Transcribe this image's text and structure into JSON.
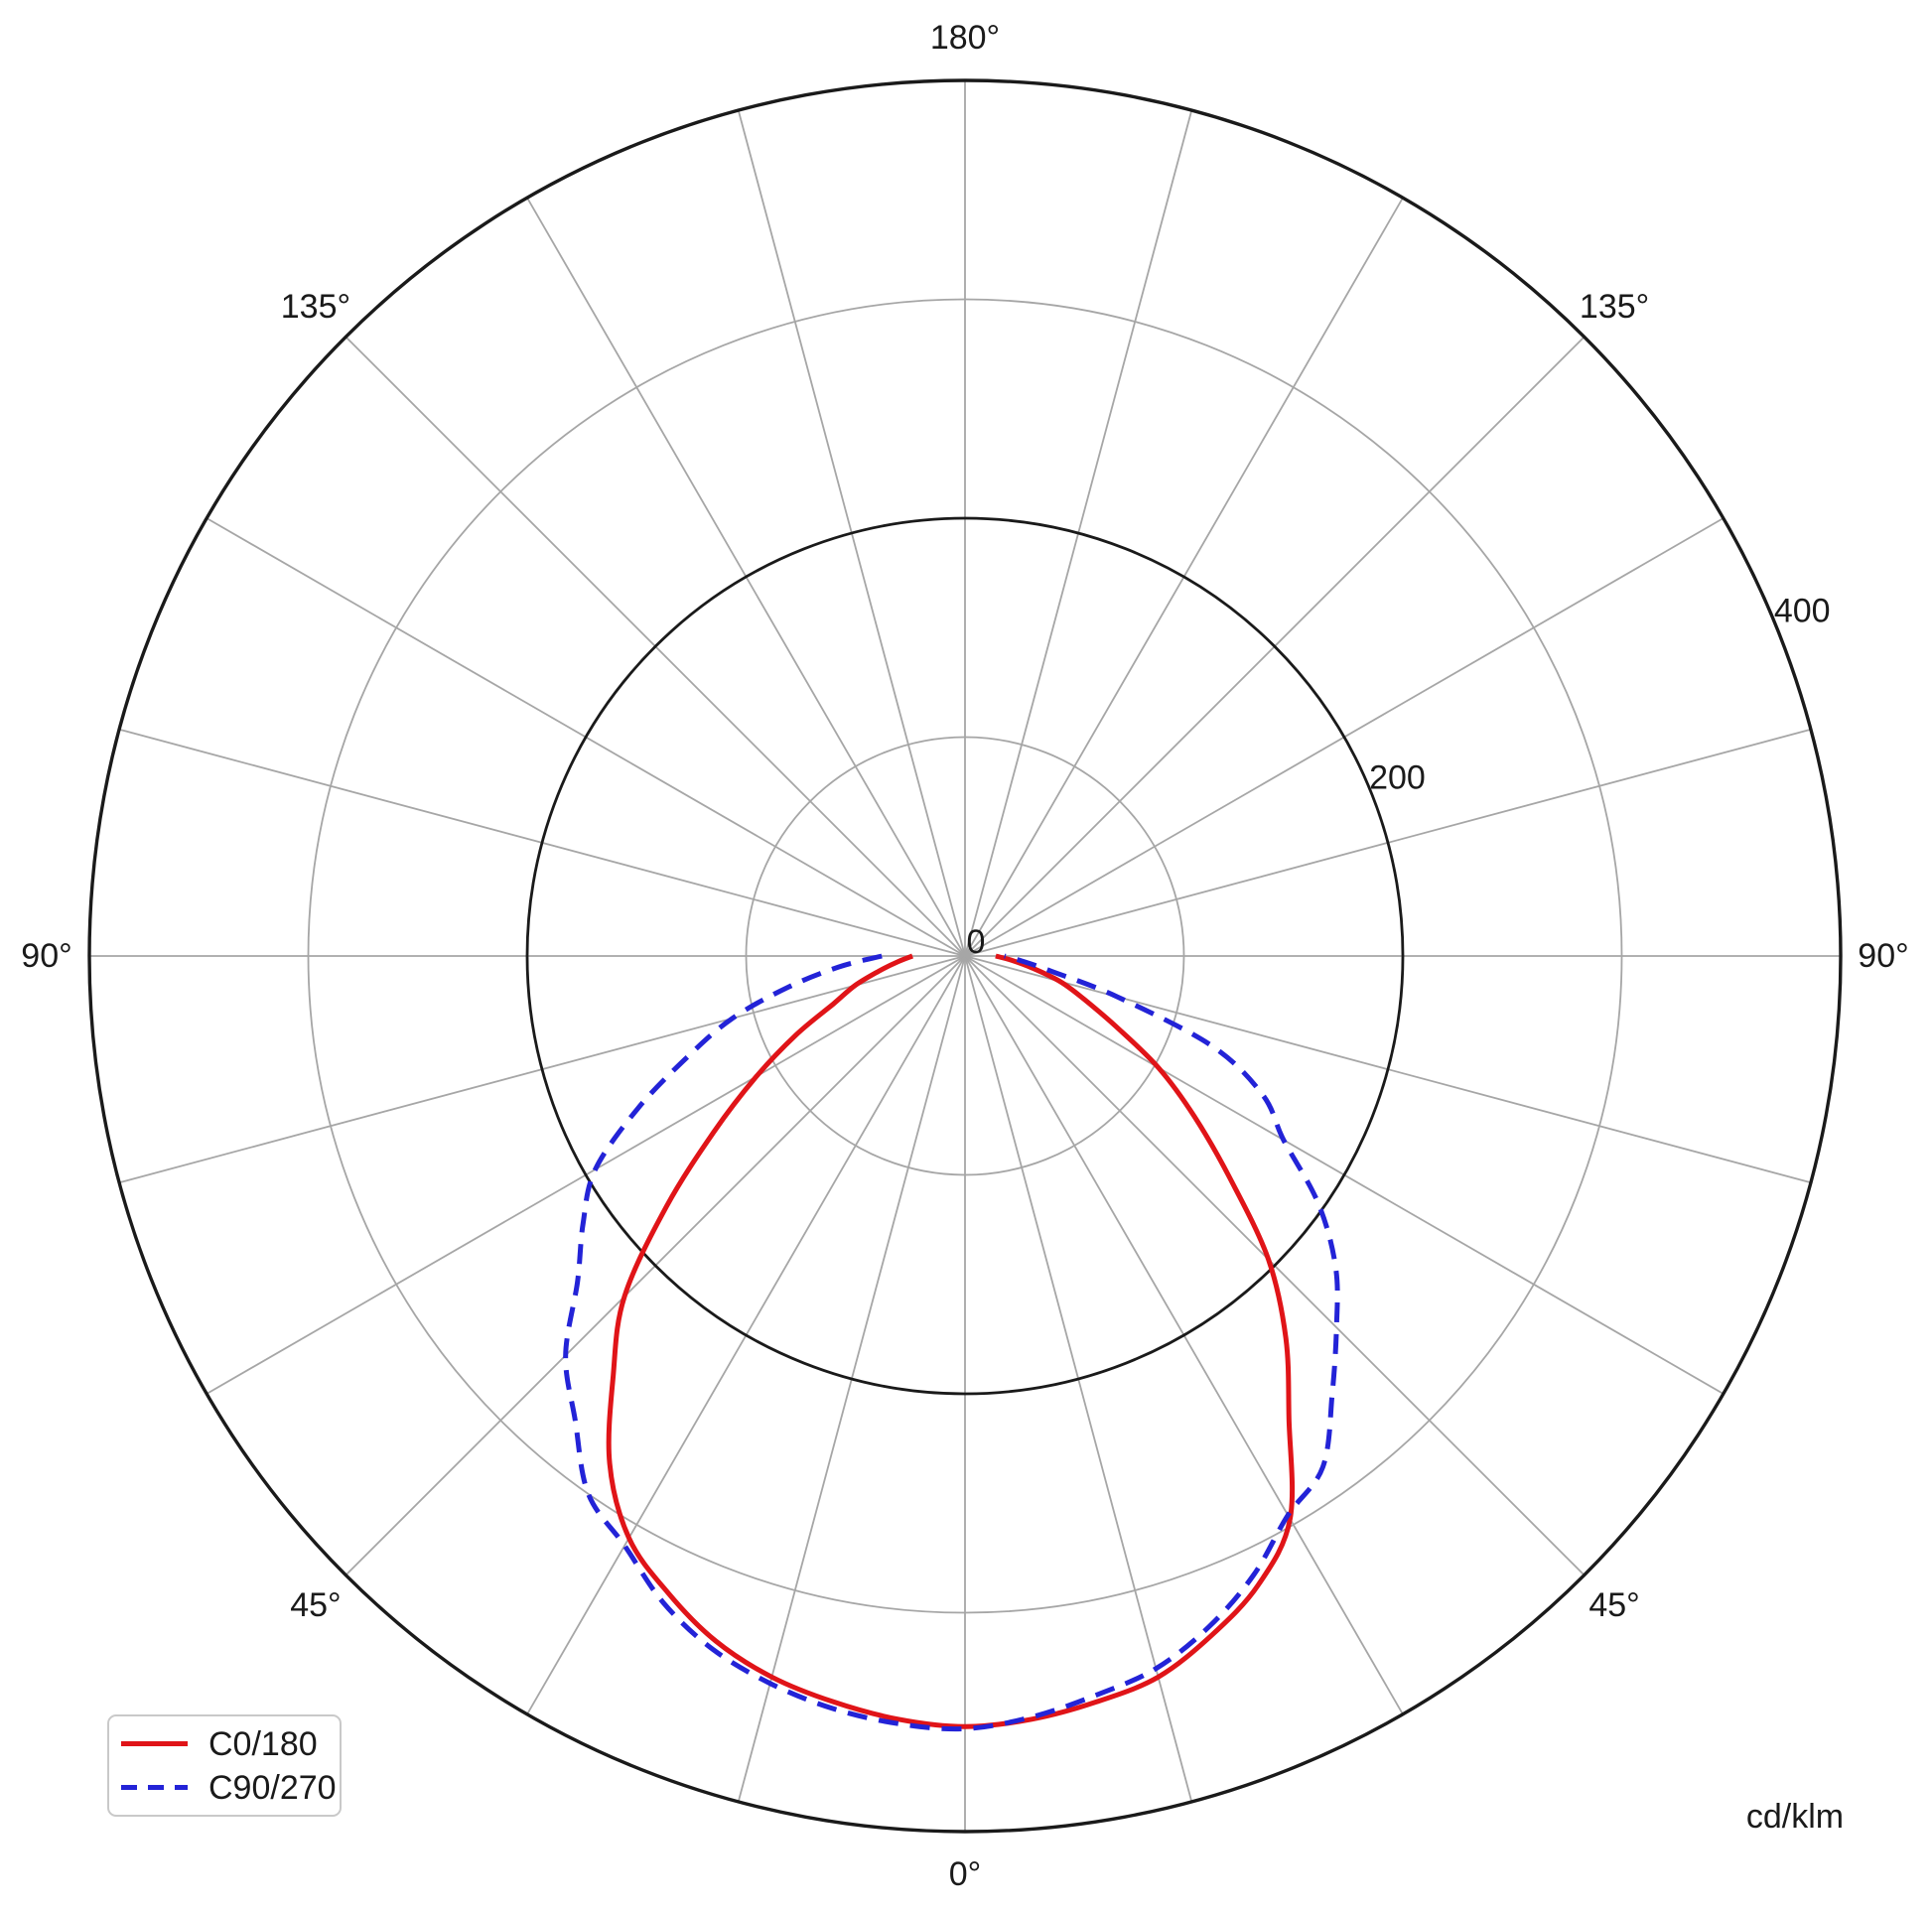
{
  "page": {
    "background": "#ffffff"
  },
  "legend": {
    "position": "bottom-left"
  },
  "unit": {
    "label": "cd/klm"
  },
  "chart_data": {
    "type": "line",
    "subtype": "polar-photometric",
    "title": "",
    "unit": "cd/klm",
    "angle_convention": "0 deg at bottom (nadir), 180 deg at top, mirrored left/right; negative = left half",
    "grid_color": "#a6a6a6",
    "axis_color": "#1a1a1a",
    "legend_position": "bottom-left",
    "r_axis": {
      "min": 0,
      "max": 400,
      "rings": [
        100,
        200,
        300,
        400
      ],
      "major_rings": [
        200,
        400
      ],
      "tick_labels": [
        {
          "label": "0",
          "value": 0
        },
        {
          "label": "200",
          "value": 200
        },
        {
          "label": "400",
          "value": 400
        }
      ]
    },
    "theta_axis": {
      "spoke_step_deg": 15,
      "tick_labels": [
        {
          "label": "0°",
          "angle": 0
        },
        {
          "label": "45°",
          "angle": 45
        },
        {
          "label": "45°",
          "angle": -45
        },
        {
          "label": "90°",
          "angle": 90
        },
        {
          "label": "90°",
          "angle": -90
        },
        {
          "label": "135°",
          "angle": 135
        },
        {
          "label": "135°",
          "angle": -135
        },
        {
          "label": "180°",
          "angle": 180
        }
      ]
    },
    "series": [
      {
        "name": "C0/180",
        "color": "#e01418",
        "style": "solid",
        "points": [
          [
            -90,
            24
          ],
          [
            -85,
            31
          ],
          [
            -80,
            40
          ],
          [
            -75,
            52
          ],
          [
            -70,
            64
          ],
          [
            -65,
            85
          ],
          [
            -60,
            110
          ],
          [
            -55,
            140
          ],
          [
            -50,
            178
          ],
          [
            -45,
            220
          ],
          [
            -40,
            250
          ],
          [
            -35,
            283
          ],
          [
            -30,
            307
          ],
          [
            -25,
            321
          ],
          [
            -20,
            333
          ],
          [
            -15,
            341
          ],
          [
            -10,
            346
          ],
          [
            -5,
            350
          ],
          [
            0,
            352
          ],
          [
            5,
            350
          ],
          [
            10,
            346
          ],
          [
            15,
            341
          ],
          [
            20,
            330
          ],
          [
            25,
            317
          ],
          [
            30,
            297
          ],
          [
            35,
            258
          ],
          [
            40,
            228
          ],
          [
            45,
            196
          ],
          [
            50,
            158
          ],
          [
            55,
            128
          ],
          [
            60,
            102
          ],
          [
            65,
            76
          ],
          [
            70,
            58
          ],
          [
            75,
            45
          ],
          [
            80,
            31
          ],
          [
            85,
            21
          ],
          [
            90,
            14
          ]
        ]
      },
      {
        "name": "C90/270",
        "color": "#2323d7",
        "style": "dashed",
        "points": [
          [
            -90,
            38
          ],
          [
            -85,
            58
          ],
          [
            -80,
            82
          ],
          [
            -75,
            110
          ],
          [
            -70,
            135
          ],
          [
            -65,
            165
          ],
          [
            -60,
            195
          ],
          [
            -55,
            213
          ],
          [
            -50,
            231
          ],
          [
            -45,
            258
          ],
          [
            -40,
            277
          ],
          [
            -35,
            300
          ],
          [
            -30,
            311
          ],
          [
            -25,
            326
          ],
          [
            -20,
            337
          ],
          [
            -15,
            344
          ],
          [
            -10,
            349
          ],
          [
            -5,
            352
          ],
          [
            0,
            353
          ],
          [
            5,
            349
          ],
          [
            10,
            343
          ],
          [
            15,
            337
          ],
          [
            20,
            326
          ],
          [
            25,
            312
          ],
          [
            30,
            295
          ],
          [
            35,
            285
          ],
          [
            40,
            261
          ],
          [
            45,
            240
          ],
          [
            50,
            221
          ],
          [
            55,
            197
          ],
          [
            60,
            168
          ],
          [
            65,
            150
          ],
          [
            70,
            120
          ],
          [
            75,
            72
          ],
          [
            80,
            40
          ],
          [
            85,
            26
          ],
          [
            90,
            18
          ]
        ]
      }
    ]
  }
}
